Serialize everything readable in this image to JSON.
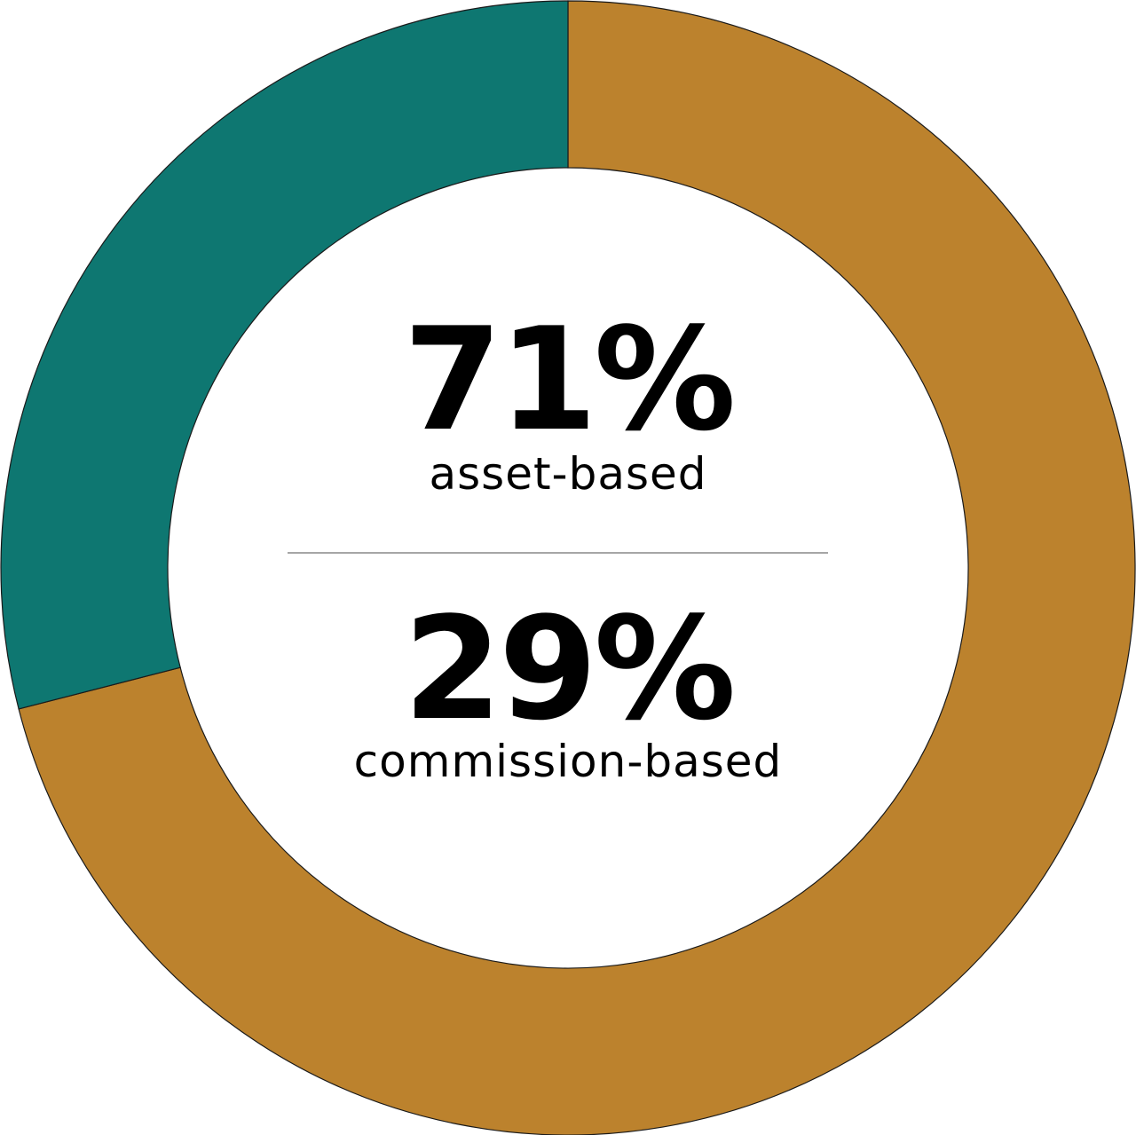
{
  "chart_data": {
    "type": "pie",
    "variant": "donut",
    "slices": [
      {
        "label": "asset-based",
        "value": 71,
        "display": "71%",
        "color": "#bc822d"
      },
      {
        "label": "commission-based",
        "value": 29,
        "display": "29%",
        "color": "#0e7771"
      }
    ],
    "start_angle": "top, clockwise",
    "title": "",
    "legend": "none"
  },
  "center": {
    "items": [
      {
        "value": "71%",
        "label": "asset-based"
      },
      {
        "value": "29%",
        "label": "commission-based"
      }
    ]
  }
}
